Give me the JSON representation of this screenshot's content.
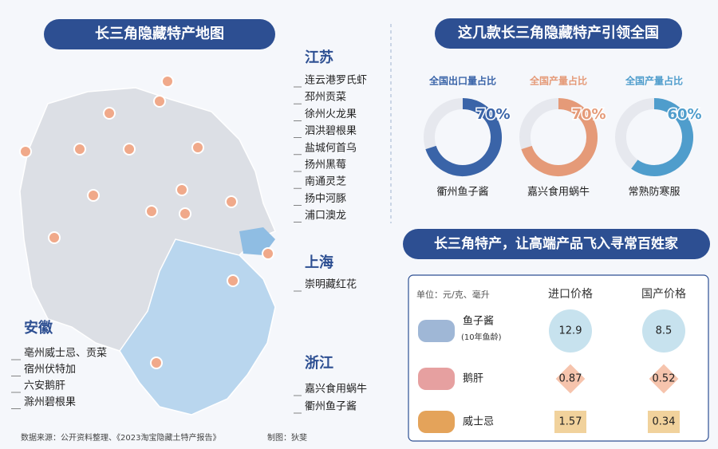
{
  "map": {
    "title": "长三角隐藏特产地图",
    "regions": [
      {
        "name": "江苏",
        "items": [
          "连云港罗氏虾",
          "邳州贡菜",
          "徐州火龙果",
          "泗洪碧根果",
          "盐城何首乌",
          "扬州黑莓",
          "南通灵芝",
          "扬中河豚",
          "浦口澳龙"
        ]
      },
      {
        "name": "上海",
        "items": [
          "崇明藏红花"
        ]
      },
      {
        "name": "浙江",
        "items": [
          "嘉兴食用蜗牛",
          "衢州鱼子酱"
        ]
      },
      {
        "name": "安徽",
        "items": [
          "亳州威士忌、贡菜",
          "宿州伏特加",
          "六安鹅肝",
          "滁州碧根果"
        ]
      }
    ],
    "source": "数据来源：公开资料整理、《2023淘宝隐藏土特产报告》",
    "credit": "制图：狄斐"
  },
  "share": {
    "title": "这几款长三角隐藏特产引领全国",
    "items": [
      {
        "label": "全国出口量占比",
        "value": 70,
        "value_label": "70%",
        "product": "衢州鱼子酱",
        "color": "#3a64a8"
      },
      {
        "label": "全国产量占比",
        "value": 70,
        "value_label": "70%",
        "product": "嘉兴食用蜗牛",
        "color": "#e59a78"
      },
      {
        "label": "全国产量占比",
        "value": 60,
        "value_label": "60%",
        "product": "常熟防寒服",
        "color": "#4f9dcc"
      }
    ]
  },
  "prices": {
    "title": "长三角特产，让高端产品飞入寻常百姓家",
    "unit": "单位：元/克、毫升",
    "columns": [
      "进口价格",
      "国产价格"
    ],
    "rows": [
      {
        "name": "鱼子酱",
        "note": "(10年鱼龄)",
        "import": 12.9,
        "domestic": 8.5
      },
      {
        "name": "鹅肝",
        "import": 0.87,
        "domestic": 0.52
      },
      {
        "name": "威士忌",
        "import": 1.57,
        "domestic": 0.34
      }
    ]
  }
}
